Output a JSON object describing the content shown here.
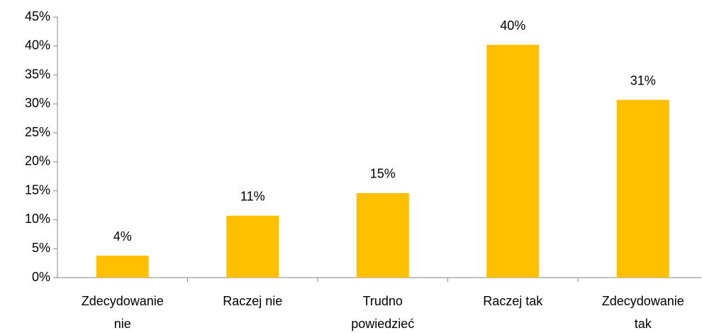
{
  "chart_data": {
    "type": "bar",
    "categories": [
      "Zdecydowanie nie",
      "Raczej nie",
      "Trudno powiedzieć",
      "Raczej tak",
      "Zdecydowanie tak"
    ],
    "values": [
      3.8,
      10.7,
      14.6,
      40.2,
      30.7
    ],
    "value_labels": [
      "4%",
      "11%",
      "15%",
      "40%",
      "31%"
    ],
    "color": "#ffc000",
    "ylim": [
      0,
      45
    ],
    "yticks": [
      {
        "value": 0,
        "label": "0%"
      },
      {
        "value": 5,
        "label": "5%"
      },
      {
        "value": 10,
        "label": "10%"
      },
      {
        "value": 15,
        "label": "15%"
      },
      {
        "value": 20,
        "label": "20%"
      },
      {
        "value": 25,
        "label": "25%"
      },
      {
        "value": 30,
        "label": "30%"
      },
      {
        "value": 35,
        "label": "35%"
      },
      {
        "value": 40,
        "label": "40%"
      },
      {
        "value": 45,
        "label": "45%"
      }
    ],
    "grid": false
  }
}
